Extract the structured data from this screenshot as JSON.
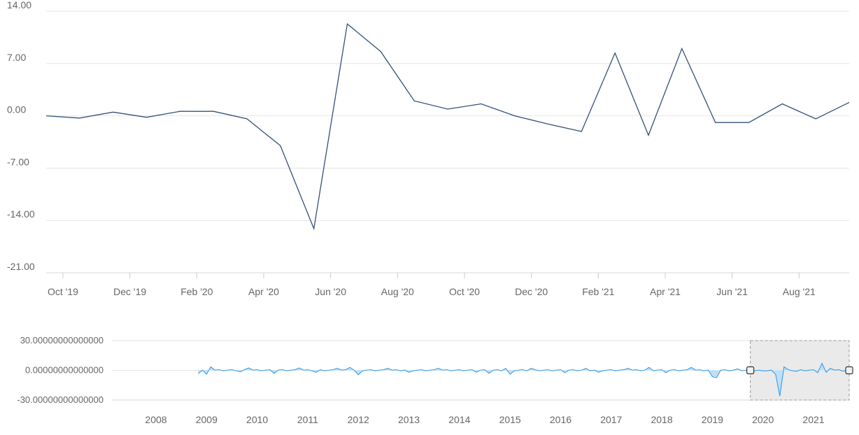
{
  "chart_data": [
    {
      "type": "line",
      "title": "",
      "xlabel": "",
      "ylabel": "",
      "ylim": [
        -21,
        14
      ],
      "y_ticks": [
        "-21.00",
        "-14.00",
        "-7.00",
        "0.00",
        "7.00",
        "14.00"
      ],
      "x_tick_labels": [
        "Oct '19",
        "Dec '19",
        "Feb '20",
        "Apr '20",
        "Jun '20",
        "Aug '20",
        "Oct '20",
        "Dec '20",
        "Feb '21",
        "Apr '21",
        "Jun '21",
        "Aug '21"
      ],
      "grid": true,
      "line_color": "#34507a",
      "series": [
        {
          "x": [
            "2019-10-01",
            "2019-11-01",
            "2019-12-01",
            "2020-01-01",
            "2020-02-01",
            "2020-03-01",
            "2020-04-01",
            "2020-05-01",
            "2020-06-01",
            "2020-07-01",
            "2020-08-01",
            "2020-09-01",
            "2020-10-01",
            "2020-11-01",
            "2020-12-01",
            "2021-01-01",
            "2021-02-01",
            "2021-03-01",
            "2021-04-01",
            "2021-05-01",
            "2021-06-01",
            "2021-07-01",
            "2021-08-01",
            "2021-09-01",
            "2021-10-01"
          ],
          "values": [
            0.0,
            -0.3,
            0.5,
            -0.2,
            0.6,
            0.6,
            -0.4,
            -4.0,
            -15.1,
            12.3,
            8.6,
            2.0,
            0.9,
            1.6,
            0.0,
            -1.1,
            -2.1,
            8.4,
            -2.6,
            9.0,
            -0.9,
            -0.9,
            1.6,
            -0.4,
            1.8
          ]
        }
      ]
    },
    {
      "type": "area",
      "role": "navigator",
      "ylim": [
        -30,
        30
      ],
      "y_ticks": [
        "-30.00000000000000",
        "0.00000000000000",
        "30.00000000000000"
      ],
      "x_tick_labels": [
        "2008",
        "2009",
        "2010",
        "2011",
        "2012",
        "2013",
        "2014",
        "2015",
        "2016",
        "2017",
        "2018",
        "2019",
        "2020",
        "2021"
      ],
      "data_range": [
        "2008-11",
        "2021-10"
      ],
      "selected_range": [
        "2019-10",
        "2021-10"
      ],
      "line_color": "#2b98e8",
      "fill_color": "#bfe0f7",
      "selection_fill": "#e6e6e6",
      "spikes": [
        {
          "x": "2008-11",
          "y": -3.5
        },
        {
          "x": "2009-01",
          "y": -4.0
        },
        {
          "x": "2009-02",
          "y": 3.5
        },
        {
          "x": "2009-09",
          "y": -1.5
        },
        {
          "x": "2009-11",
          "y": 2.5
        },
        {
          "x": "2010-05",
          "y": -3.0
        },
        {
          "x": "2010-11",
          "y": 2.5
        },
        {
          "x": "2011-03",
          "y": -2.0
        },
        {
          "x": "2011-08",
          "y": 2.0
        },
        {
          "x": "2011-11",
          "y": 3.0
        },
        {
          "x": "2012-01",
          "y": -4.5
        },
        {
          "x": "2012-08",
          "y": 2.0
        },
        {
          "x": "2013-01",
          "y": -2.0
        },
        {
          "x": "2013-08",
          "y": 2.0
        },
        {
          "x": "2014-05",
          "y": -2.0
        },
        {
          "x": "2014-08",
          "y": -3.0
        },
        {
          "x": "2014-12",
          "y": 2.0
        },
        {
          "x": "2015-01",
          "y": -4.0
        },
        {
          "x": "2015-06",
          "y": 2.0
        },
        {
          "x": "2016-02",
          "y": -2.5
        },
        {
          "x": "2016-07",
          "y": 2.0
        },
        {
          "x": "2016-10",
          "y": -2.0
        },
        {
          "x": "2017-05",
          "y": 2.0
        },
        {
          "x": "2017-10",
          "y": 3.0
        },
        {
          "x": "2018-02",
          "y": -2.5
        },
        {
          "x": "2018-08",
          "y": 3.0
        },
        {
          "x": "2019-01",
          "y": -6.5
        },
        {
          "x": "2019-02",
          "y": -7.5
        },
        {
          "x": "2019-07",
          "y": 1.5
        },
        {
          "x": "2020-01",
          "y": -0.5
        },
        {
          "x": "2020-04",
          "y": -4.0
        },
        {
          "x": "2020-05",
          "y": -26.0
        },
        {
          "x": "2020-06",
          "y": 3.5
        },
        {
          "x": "2020-09",
          "y": -1.0
        },
        {
          "x": "2021-02",
          "y": -2.5
        },
        {
          "x": "2021-03",
          "y": 7.0
        },
        {
          "x": "2021-04",
          "y": -2.0
        },
        {
          "x": "2021-05",
          "y": 2.0
        },
        {
          "x": "2021-08",
          "y": -1.0
        }
      ]
    }
  ]
}
